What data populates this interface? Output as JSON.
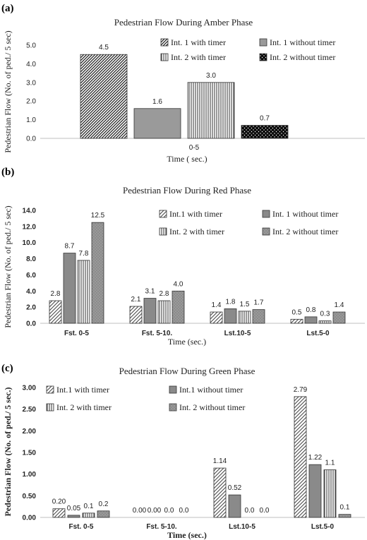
{
  "chart_data": [
    {
      "panel": "(a)",
      "type": "bar",
      "title": "Pedestrian Flow During Amber Phase",
      "xlabel": "Time ( sec.)",
      "ylabel": "Pedestrian Flow (No. of ped./ 5 sec)",
      "ylim": [
        0,
        5
      ],
      "yticks": [
        "0.0",
        "1.0",
        "2.0",
        "3.0",
        "4.0",
        "5.0"
      ],
      "categories": [
        "0-5"
      ],
      "series": [
        {
          "name": "Int. 1 with timer",
          "pattern": "diagdense",
          "values": [
            4.5
          ],
          "labels": [
            "4.5"
          ]
        },
        {
          "name": "Int. 1 without timer",
          "pattern": "gray",
          "values": [
            1.6
          ],
          "labels": [
            "1.6"
          ]
        },
        {
          "name": "Int. 2 with timer",
          "pattern": "vlines",
          "values": [
            3.0
          ],
          "labels": [
            "3.0"
          ]
        },
        {
          "name": "Int. 2 without timer",
          "pattern": "dots",
          "values": [
            0.7
          ],
          "labels": [
            "0.7"
          ]
        }
      ],
      "legend": "right"
    },
    {
      "panel": "(b)",
      "type": "bar",
      "title": "Pedestrian Flow During Red Phase",
      "xlabel": "Time (sec.)",
      "ylabel": "Pedestrian Flow (No. of ped./ 5 sec)",
      "ylim": [
        0,
        14
      ],
      "yticks": [
        "0.0",
        "2.0",
        "4.0",
        "6.0",
        "8.0",
        "10.0",
        "12.0",
        "14.0"
      ],
      "categories": [
        "Fst. 0-5",
        "Fst. 5-10.",
        "Lst.10-5",
        "Lst.5-0"
      ],
      "series": [
        {
          "name": "Int.1 with timer",
          "pattern": "diag",
          "values": [
            2.8,
            2.1,
            1.4,
            0.5
          ],
          "labels": [
            "2.8",
            "2.1",
            "1.4",
            "0.5"
          ]
        },
        {
          "name": "Int. 1 without timer",
          "pattern": "darkgray",
          "values": [
            8.7,
            3.1,
            1.8,
            0.8
          ],
          "labels": [
            "8.7",
            "3.1",
            "1.8",
            "0.8"
          ]
        },
        {
          "name": "Int. 2 with timer",
          "pattern": "vlines",
          "values": [
            7.8,
            2.8,
            1.5,
            0.3
          ],
          "labels": [
            "7.8",
            "2.8",
            "1.5",
            "0.3"
          ]
        },
        {
          "name": "Int. 2 without timer",
          "pattern": "graydots",
          "values": [
            12.5,
            4.0,
            1.7,
            1.4
          ],
          "labels": [
            "12.5",
            "4.0",
            "1.7",
            "1.4"
          ]
        }
      ],
      "legend": "top-right"
    },
    {
      "panel": "(c)",
      "type": "bar",
      "title": "Pedestrian Flow During Green Phase",
      "xlabel": "Time (sec.)",
      "ylabel": "Pedestrian Flow (No. of ped./ 5 sec.)",
      "ylim": [
        0,
        3
      ],
      "yticks": [
        "0.00",
        "0.50",
        "1.00",
        "1.50",
        "2.00",
        "2.50",
        "3.00"
      ],
      "categories": [
        "Fst. 0-5",
        "Fst. 5-10.",
        "Lst.10-5",
        "Lst.5-0"
      ],
      "series": [
        {
          "name": "Int.1 with timer",
          "pattern": "diag",
          "values": [
            0.2,
            0.0,
            1.14,
            2.79
          ],
          "labels": [
            "0.20",
            "0.00",
            "1.14",
            "2.79"
          ]
        },
        {
          "name": "Int.1 without timer",
          "pattern": "darkgray",
          "values": [
            0.05,
            0.0,
            0.52,
            1.22
          ],
          "labels": [
            "0.05",
            "0.00",
            "0.52",
            "1.22"
          ]
        },
        {
          "name": "Int. 2 with timer",
          "pattern": "vlines",
          "values": [
            0.1,
            0.0,
            0.0,
            1.1
          ],
          "labels": [
            "0.1",
            "0.0",
            "0.0",
            "1.1"
          ]
        },
        {
          "name": "Int. 2 without timer",
          "pattern": "graydots",
          "values": [
            0.15,
            0.0,
            0.0,
            0.07
          ],
          "labels": [
            "0.2",
            "0.0",
            "0.0",
            "0.1"
          ]
        }
      ],
      "legend": "top-left"
    }
  ]
}
